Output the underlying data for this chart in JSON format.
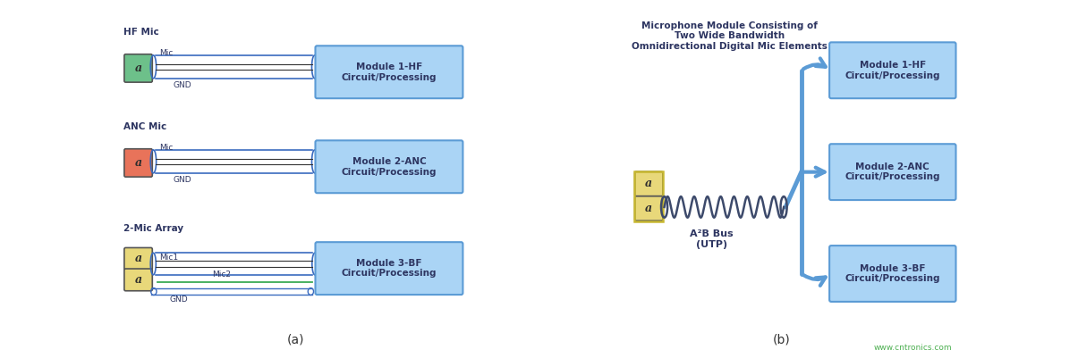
{
  "bg_color": "#ffffff",
  "text_color": "#2d3561",
  "box_fill": "#aad4f5",
  "box_edge": "#5b9bd5",
  "mic_hf_color": "#6dc08a",
  "mic_anc_color": "#e8735a",
  "mic_array_color": "#e8d87a",
  "wire_blue": "#3a6bbf",
  "wire_green": "#3aaa55",
  "coil_color": "#3d4a6b",
  "arrow_color": "#5b9bd5",
  "panel_a_label": "(a)",
  "panel_b_label": "(b)",
  "watermark": "www.cntronics.com",
  "watermark_color": "#4caf50",
  "modules": [
    "Module 1-HF\nCircuit/Processing",
    "Module 2-ANC\nCircuit/Processing",
    "Module 3-BF\nCircuit/Processing"
  ],
  "labels_a": [
    "HF Mic",
    "ANC Mic",
    "2-Mic Array"
  ],
  "title_b": "Microphone Module Consisting of\nTwo Wide Bandwidth\nOmnidirectional Digital Mic Elements",
  "label_b_bus": "A²B Bus\n(UTP)"
}
